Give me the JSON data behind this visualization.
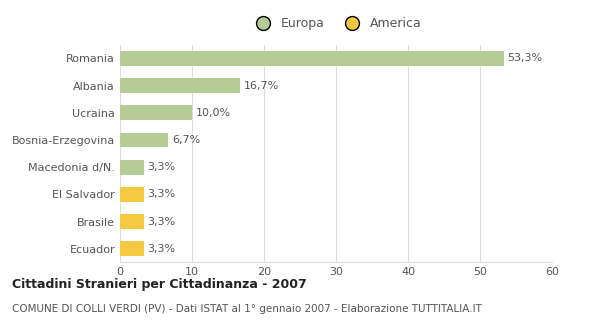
{
  "categories": [
    "Romania",
    "Albania",
    "Ucraina",
    "Bosnia-Erzegovina",
    "Macedonia d/N.",
    "El Salvador",
    "Brasile",
    "Ecuador"
  ],
  "values": [
    53.3,
    16.7,
    10.0,
    6.7,
    3.3,
    3.3,
    3.3,
    3.3
  ],
  "labels": [
    "53,3%",
    "16,7%",
    "10,0%",
    "6,7%",
    "3,3%",
    "3,3%",
    "3,3%",
    "3,3%"
  ],
  "colors": [
    "#b5cc96",
    "#b5cc96",
    "#b5cc96",
    "#b5cc96",
    "#b5cc96",
    "#f5c842",
    "#f5c842",
    "#f5c842"
  ],
  "legend_labels": [
    "Europa",
    "America"
  ],
  "legend_colors": [
    "#b5cc96",
    "#f5c842"
  ],
  "xlim": [
    0,
    60
  ],
  "xticks": [
    0,
    10,
    20,
    30,
    40,
    50,
    60
  ],
  "title_bold": "Cittadini Stranieri per Cittadinanza - 2007",
  "subtitle": "COMUNE DI COLLI VERDI (PV) - Dati ISTAT al 1° gennaio 2007 - Elaborazione TUTTITALIA.IT",
  "bar_height": 0.55,
  "background_color": "#ffffff",
  "grid_color": "#dddddd",
  "label_fontsize": 8,
  "tick_fontsize": 8,
  "title_fontsize": 9,
  "subtitle_fontsize": 7.5
}
